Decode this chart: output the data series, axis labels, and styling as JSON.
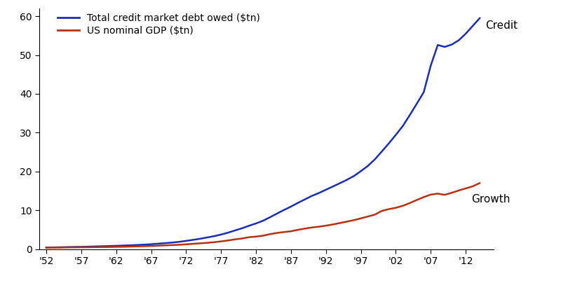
{
  "credit_label": "Total credit market debt owed ($tn)",
  "gdp_label": "US nominal GDP ($tn)",
  "credit_color": "#1a2db5",
  "gdp_color": "#b83010",
  "annotation_credit": "Credit",
  "annotation_gdp": "Growth",
  "ylim": [
    0,
    62
  ],
  "yticks": [
    0,
    10,
    20,
    30,
    40,
    50,
    60
  ],
  "xtick_labels": [
    "'52",
    "'57",
    "'62",
    "'67",
    "'72",
    "'77",
    "'82",
    "'87",
    "'92",
    "'97",
    "'02",
    "'07",
    "'12"
  ],
  "xtick_years": [
    1952,
    1957,
    1962,
    1967,
    1972,
    1977,
    1982,
    1987,
    1992,
    1997,
    2002,
    2007,
    2012
  ],
  "xlim": [
    1951,
    2016
  ],
  "years": [
    1952,
    1953,
    1954,
    1955,
    1956,
    1957,
    1958,
    1959,
    1960,
    1961,
    1962,
    1963,
    1964,
    1965,
    1966,
    1967,
    1968,
    1969,
    1970,
    1971,
    1972,
    1973,
    1974,
    1975,
    1976,
    1977,
    1978,
    1979,
    1980,
    1981,
    1982,
    1983,
    1984,
    1985,
    1986,
    1987,
    1988,
    1989,
    1990,
    1991,
    1992,
    1993,
    1994,
    1995,
    1996,
    1997,
    1998,
    1999,
    2000,
    2001,
    2002,
    2003,
    2004,
    2005,
    2006,
    2007,
    2008,
    2009,
    2010,
    2011,
    2012,
    2013,
    2014
  ],
  "gdp": [
    0.36,
    0.38,
    0.38,
    0.41,
    0.43,
    0.45,
    0.46,
    0.49,
    0.51,
    0.52,
    0.56,
    0.59,
    0.63,
    0.68,
    0.74,
    0.79,
    0.86,
    0.94,
    1.02,
    1.1,
    1.21,
    1.35,
    1.47,
    1.6,
    1.77,
    1.97,
    2.21,
    2.49,
    2.72,
    3.05,
    3.21,
    3.44,
    3.84,
    4.15,
    4.38,
    4.58,
    4.95,
    5.27,
    5.56,
    5.76,
    6.03,
    6.34,
    6.7,
    7.07,
    7.45,
    7.91,
    8.38,
    8.87,
    9.82,
    10.29,
    10.63,
    11.14,
    11.85,
    12.64,
    13.4,
    14.03,
    14.29,
    13.97,
    14.5,
    15.09,
    15.63,
    16.16,
    17.0
  ],
  "credit": [
    0.4,
    0.43,
    0.46,
    0.5,
    0.54,
    0.57,
    0.62,
    0.67,
    0.72,
    0.77,
    0.83,
    0.9,
    0.97,
    1.05,
    1.14,
    1.24,
    1.38,
    1.52,
    1.67,
    1.86,
    2.1,
    2.37,
    2.65,
    2.98,
    3.32,
    3.73,
    4.22,
    4.8,
    5.35,
    6.0,
    6.6,
    7.29,
    8.19,
    9.14,
    10.07,
    10.94,
    11.9,
    12.8,
    13.7,
    14.44,
    15.28,
    16.12,
    16.97,
    17.84,
    18.82,
    20.07,
    21.42,
    23.11,
    25.15,
    27.23,
    29.42,
    31.71,
    34.52,
    37.46,
    40.44,
    47.3,
    52.6,
    52.1,
    52.7,
    53.8,
    55.5,
    57.5,
    59.5
  ],
  "legend_fontsize": 10,
  "annotation_fontsize": 11,
  "tick_fontsize": 10,
  "linewidth": 1.8
}
